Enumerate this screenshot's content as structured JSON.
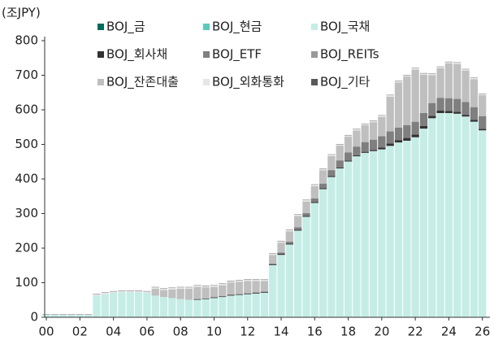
{
  "chart_data": {
    "type": "bar",
    "stacked": true,
    "y_axis_label": "(조JPY)",
    "x": [
      0,
      0.5,
      1,
      1.5,
      2,
      2.5,
      3,
      3.5,
      4,
      4.5,
      5,
      5.5,
      6,
      6.5,
      7,
      7.5,
      8,
      8.5,
      9,
      9.5,
      10,
      10.5,
      11,
      11.5,
      12,
      12.5,
      13,
      13.5,
      14,
      14.5,
      15,
      15.5,
      16,
      16.5,
      17,
      17.5,
      18,
      18.5,
      19,
      19.5,
      20,
      20.5,
      21,
      21.5,
      22,
      22.5,
      23,
      23.5,
      24,
      24.5,
      25,
      25.5,
      26
    ],
    "xlim": [
      -0.1,
      26.45
    ],
    "xticks": [
      {
        "value": 0,
        "label": "00"
      },
      {
        "value": 2,
        "label": "02"
      },
      {
        "value": 4,
        "label": "04"
      },
      {
        "value": 6,
        "label": "06"
      },
      {
        "value": 8,
        "label": "08"
      },
      {
        "value": 10,
        "label": "10"
      },
      {
        "value": 12,
        "label": "12"
      },
      {
        "value": 14,
        "label": "14"
      },
      {
        "value": 16,
        "label": "16"
      },
      {
        "value": 18,
        "label": "18"
      },
      {
        "value": 20,
        "label": "20"
      },
      {
        "value": 22,
        "label": "22"
      },
      {
        "value": 24,
        "label": "24"
      },
      {
        "value": 26,
        "label": "26"
      }
    ],
    "ylim": [
      0,
      800
    ],
    "yticks": [
      0,
      100,
      200,
      300,
      400,
      500,
      600,
      700,
      800
    ],
    "grid": false,
    "series": [
      {
        "name": "BOJ_금",
        "color": "#006b5a",
        "values": [
          0.4,
          0.4,
          0.4,
          0.4,
          0.4,
          0.4,
          0.4,
          0.4,
          0.4,
          0.4,
          0.4,
          0.4,
          0.4,
          0.4,
          0.4,
          0.4,
          0.4,
          0.4,
          0.4,
          0.4,
          0.4,
          0.4,
          0.4,
          0.4,
          0.4,
          0.4,
          0.4,
          0.4,
          0.4,
          0.4,
          0.4,
          0.4,
          0.4,
          0.4,
          0.4,
          0.4,
          0.4,
          0.4,
          0.4,
          0.4,
          0.4,
          0.4,
          0.4,
          0.4,
          0.4,
          0.4,
          0.4,
          0.4,
          0.4,
          0.4,
          0.4,
          0.4,
          0.4
        ]
      },
      {
        "name": "BOJ_현금",
        "color": "#5cc9bb",
        "values": [
          0.2,
          0.2,
          0.2,
          0.2,
          0.2,
          0.2,
          0.2,
          0.2,
          0.2,
          0.2,
          0.2,
          0.2,
          0.2,
          0.2,
          0.2,
          0.2,
          0.2,
          0.2,
          0.2,
          0.2,
          0.2,
          0.2,
          0.2,
          0.2,
          0.2,
          0.2,
          0.2,
          0.2,
          0.2,
          0.2,
          0.2,
          0.2,
          0.2,
          0.2,
          0.2,
          0.2,
          0.2,
          0.2,
          0.2,
          0.2,
          0.2,
          0.2,
          0.2,
          0.2,
          0.2,
          0.2,
          0.2,
          0.2,
          0.2,
          0.2,
          0.2,
          0.2,
          0.2
        ]
      },
      {
        "name": "BOJ_국채",
        "color": "#c5ede6",
        "values": [
          7,
          7,
          7,
          7,
          7,
          7,
          62,
          66,
          70,
          72,
          72,
          72,
          70,
          62,
          58,
          55,
          52,
          50,
          50,
          52,
          55,
          58,
          62,
          64,
          66,
          68,
          70,
          150,
          180,
          210,
          250,
          290,
          330,
          370,
          405,
          430,
          450,
          465,
          475,
          480,
          485,
          495,
          505,
          510,
          520,
          545,
          575,
          590,
          590,
          588,
          580,
          565,
          540
        ]
      },
      {
        "name": "BOJ_회사채",
        "color": "#333333",
        "values": [
          0,
          0,
          0,
          0,
          0,
          0,
          0,
          0,
          0,
          0,
          0,
          0,
          0,
          0,
          0,
          0,
          0,
          0,
          2,
          2,
          2,
          2,
          2,
          2,
          2,
          2,
          2,
          2,
          3,
          3,
          3,
          3,
          3,
          3,
          3,
          3,
          3,
          3,
          3,
          3,
          5,
          7,
          7,
          8,
          8,
          8,
          7,
          7,
          6,
          6,
          5,
          5,
          4
        ]
      },
      {
        "name": "BOJ_ETF",
        "color": "#7f7f7f",
        "values": [
          0,
          0,
          0,
          0,
          0,
          0,
          0,
          0,
          0,
          0,
          0,
          0,
          0,
          0,
          0,
          0,
          0,
          0,
          0,
          0,
          0,
          0,
          1,
          1,
          1.5,
          1.5,
          2,
          2.5,
          4,
          5,
          7,
          8,
          10,
          13,
          17,
          20,
          23,
          25,
          28,
          30,
          33,
          35,
          36,
          37,
          37,
          37,
          37,
          37,
          37,
          37,
          37,
          37,
          37
        ]
      },
      {
        "name": "BOJ_REITs",
        "color": "#999999",
        "values": [
          0,
          0,
          0,
          0,
          0,
          0,
          0,
          0,
          0,
          0,
          0,
          0,
          0,
          0,
          0,
          0,
          0,
          0,
          0,
          0,
          0,
          0,
          0.1,
          0.1,
          0.1,
          0.1,
          0.1,
          0.1,
          0.1,
          0.1,
          0.1,
          0.1,
          0.6,
          0.6,
          0.6,
          0.6,
          0.6,
          0.6,
          0.6,
          0.6,
          0.6,
          0.6,
          0.6,
          0.6,
          0.6,
          0.6,
          0.6,
          0.6,
          0.6,
          0.6,
          0.6,
          0.6,
          0.6
        ]
      },
      {
        "name": "BOJ_잔존대출",
        "color": "#bfbfbf",
        "values": [
          0,
          0,
          0,
          0,
          0,
          0,
          0,
          0,
          0,
          0,
          0,
          0,
          0,
          20,
          20,
          25,
          30,
          32,
          35,
          32,
          30,
          32,
          35,
          35,
          35,
          33,
          30,
          25,
          28,
          30,
          32,
          33,
          35,
          38,
          40,
          42,
          45,
          46,
          48,
          50,
          55,
          100,
          130,
          140,
          150,
          110,
          80,
          85,
          100,
          100,
          90,
          80,
          60
        ]
      },
      {
        "name": "BOJ_외화통화",
        "color": "#e6e6e6",
        "values": [
          0,
          0,
          0,
          0,
          0,
          0,
          4,
          4,
          4,
          4,
          4,
          4,
          4,
          4,
          4,
          4,
          4,
          4,
          4,
          4,
          4,
          4,
          4,
          4,
          4,
          4,
          4,
          4,
          4,
          4,
          4,
          4,
          4,
          4,
          4,
          4,
          4,
          4,
          4,
          4,
          4,
          4,
          4,
          4,
          4,
          4,
          4,
          4,
          4,
          4,
          4,
          4,
          4
        ]
      },
      {
        "name": "BOJ_기타",
        "color": "#595959",
        "values": [
          1,
          1,
          1,
          1,
          1,
          1,
          1,
          1,
          1,
          1,
          1,
          1,
          1,
          1,
          1,
          1,
          1,
          1,
          1,
          1,
          1,
          1,
          1,
          1,
          1,
          1,
          1,
          1,
          1,
          1,
          1,
          1,
          1,
          1,
          1,
          1,
          1,
          1,
          1,
          1,
          1,
          1,
          1,
          1,
          1,
          1,
          1,
          1,
          1,
          1,
          1,
          1,
          1
        ]
      }
    ]
  }
}
